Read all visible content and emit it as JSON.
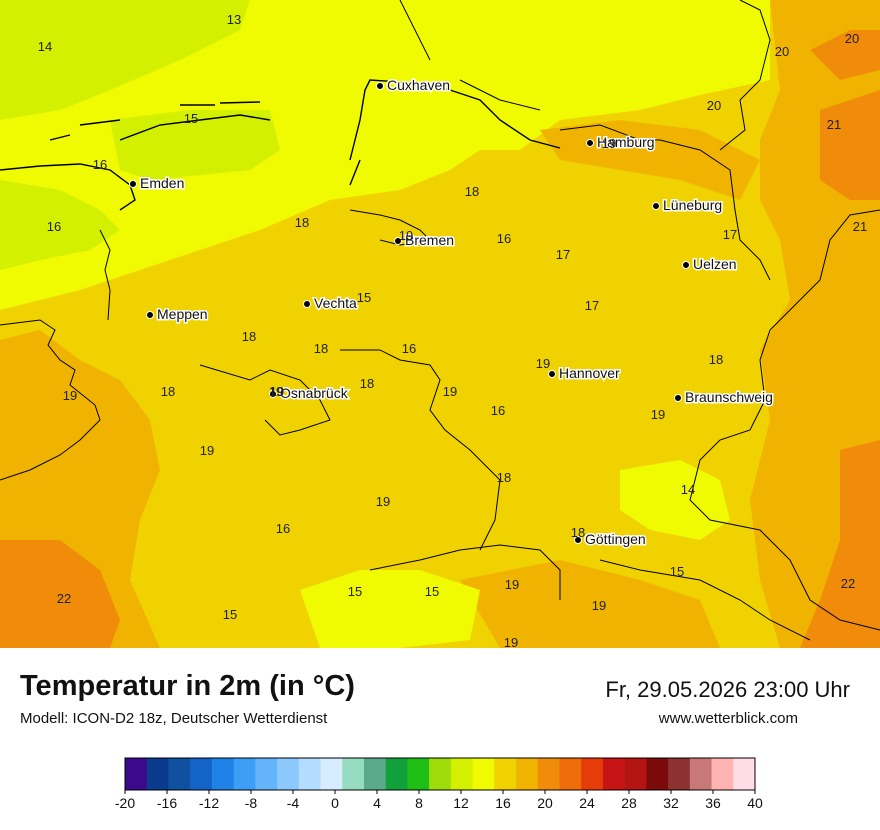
{
  "header": {
    "title": "Temperatur in 2m (in °C)",
    "model": "Modell: ICON-D2 18z, Deutscher Wetterdienst",
    "datetime": "Fr, 29.05.2026 23:00 Uhr",
    "website": "www.wetterblick.com"
  },
  "cities": [
    {
      "name": "Cuxhaven"
    },
    {
      "name": "Hamburg"
    },
    {
      "name": "Emden"
    },
    {
      "name": "Lüneburg"
    },
    {
      "name": "Bremen"
    },
    {
      "name": "Uelzen"
    },
    {
      "name": "Meppen"
    },
    {
      "name": "Vechta"
    },
    {
      "name": "Hannover"
    },
    {
      "name": "Osnabrück"
    },
    {
      "name": "Braunschweig"
    },
    {
      "name": "Göttingen"
    }
  ],
  "temperature_labels": [
    "13",
    "14",
    "15",
    "16",
    "16",
    "18",
    "18",
    "16",
    "17",
    "17",
    "17",
    "18",
    "18",
    "16",
    "19",
    "18",
    "18",
    "19",
    "16",
    "19",
    "19",
    "18",
    "19",
    "16",
    "19",
    "19",
    "19",
    "19",
    "14",
    "18",
    "18",
    "19",
    "15",
    "15",
    "15",
    "15",
    "19",
    "19",
    "15",
    "22",
    "22",
    "20",
    "20",
    "20",
    "21",
    "21",
    "19"
  ],
  "legend": {
    "ticks": [
      "-20",
      "-16",
      "-12",
      "-8",
      "-4",
      "0",
      "4",
      "8",
      "12",
      "16",
      "20",
      "24",
      "28",
      "32",
      "36",
      "40"
    ],
    "colors": [
      "#3b0a8c",
      "#0a3a8c",
      "#1050a0",
      "#1464c8",
      "#1e82e6",
      "#3c9ef5",
      "#64b4fa",
      "#8cc8fc",
      "#b4dcfe",
      "#d8ecff",
      "#96dcc0",
      "#5aaa8c",
      "#12a03c",
      "#1ebe14",
      "#a0dc0a",
      "#d2f000",
      "#f0fa00",
      "#f0d200",
      "#f0b400",
      "#f08c0a",
      "#f06e0a",
      "#e63c0a",
      "#c81414",
      "#b41414",
      "#7d0a0a",
      "#8c3232",
      "#c87878",
      "#ffb4b4",
      "#ffdce6"
    ]
  },
  "colors": {
    "c14": "#d2f000",
    "c16": "#f0fa00",
    "c18": "#f0d200",
    "c20": "#f0b400",
    "c22": "#f08c0a"
  }
}
